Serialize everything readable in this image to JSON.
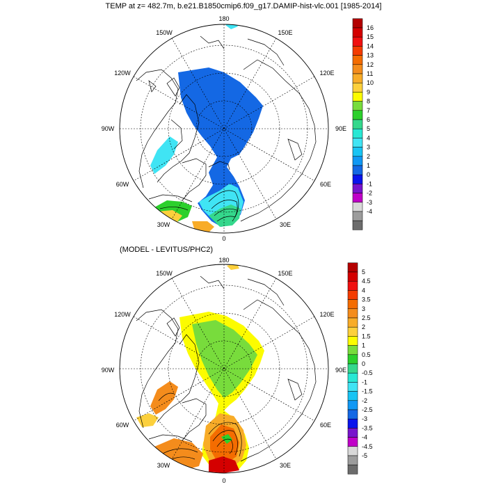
{
  "figure": {
    "title": "TEMP at z= 482.7m, b.e21.B1850cmip6.f09_g17.DAMIP-hist-vlc.001 [1985-2014]",
    "subtitle": "(MODEL - LEVITUS/PHC2)"
  },
  "maps": [
    {
      "name": "top",
      "lon_labels": {
        "n": "180",
        "nw": "150W",
        "ne": "150E",
        "w1": "120W",
        "e1": "120E",
        "w2": "90W",
        "e2": "90E",
        "w3": "60W",
        "e3": "60E",
        "w4": "30W",
        "e4": "30E",
        "s": "0"
      },
      "colorbar": {
        "labels": [
          "16",
          "15",
          "14",
          "13",
          "12",
          "11",
          "10",
          "9",
          "8",
          "7",
          "6",
          "5",
          "4",
          "3",
          "2",
          "1",
          "0",
          "-1",
          "-2",
          "-3",
          "-4"
        ],
        "colors": [
          "#b40000",
          "#d40000",
          "#f01010",
          "#f43c00",
          "#f46c00",
          "#f48c1c",
          "#f8ac28",
          "#fcd03c",
          "#fcfc00",
          "#78dc3c",
          "#2cd02c",
          "#34d88c",
          "#28e8d4",
          "#40e4f4",
          "#18c4f4",
          "#1098f4",
          "#1468e4",
          "#0a14ec",
          "#7814cc",
          "#c000c8",
          "#d8d8d8",
          "#9c9c9c",
          "#6c6c6c"
        ]
      }
    },
    {
      "name": "bottom",
      "lon_labels": {
        "n": "180",
        "nw": "150W",
        "ne": "150E",
        "w1": "120W",
        "e1": "120E",
        "w2": "90W",
        "e2": "90E",
        "w3": "60W",
        "e3": "60E",
        "w4": "30W",
        "e4": "30E",
        "s": "0"
      },
      "colorbar": {
        "labels": [
          "5",
          "4.5",
          "4",
          "3.5",
          "3",
          "2.5",
          "2",
          "1.5",
          "1",
          "0.5",
          "0",
          "-0.5",
          "-1",
          "-1.5",
          "-2",
          "-2.5",
          "-3",
          "-3.5",
          "-4",
          "-4.5",
          "-5"
        ],
        "colors": [
          "#b40000",
          "#d40000",
          "#f01010",
          "#f43c00",
          "#f46c00",
          "#f48c1c",
          "#f8ac28",
          "#fcd03c",
          "#fcfc00",
          "#78dc3c",
          "#2cd02c",
          "#34d88c",
          "#28e8d4",
          "#40e4f4",
          "#18c4f4",
          "#1098f4",
          "#1468e4",
          "#0a14ec",
          "#7814cc",
          "#c000c8",
          "#d8d8d8",
          "#9c9c9c",
          "#6c6c6c"
        ]
      }
    }
  ]
}
